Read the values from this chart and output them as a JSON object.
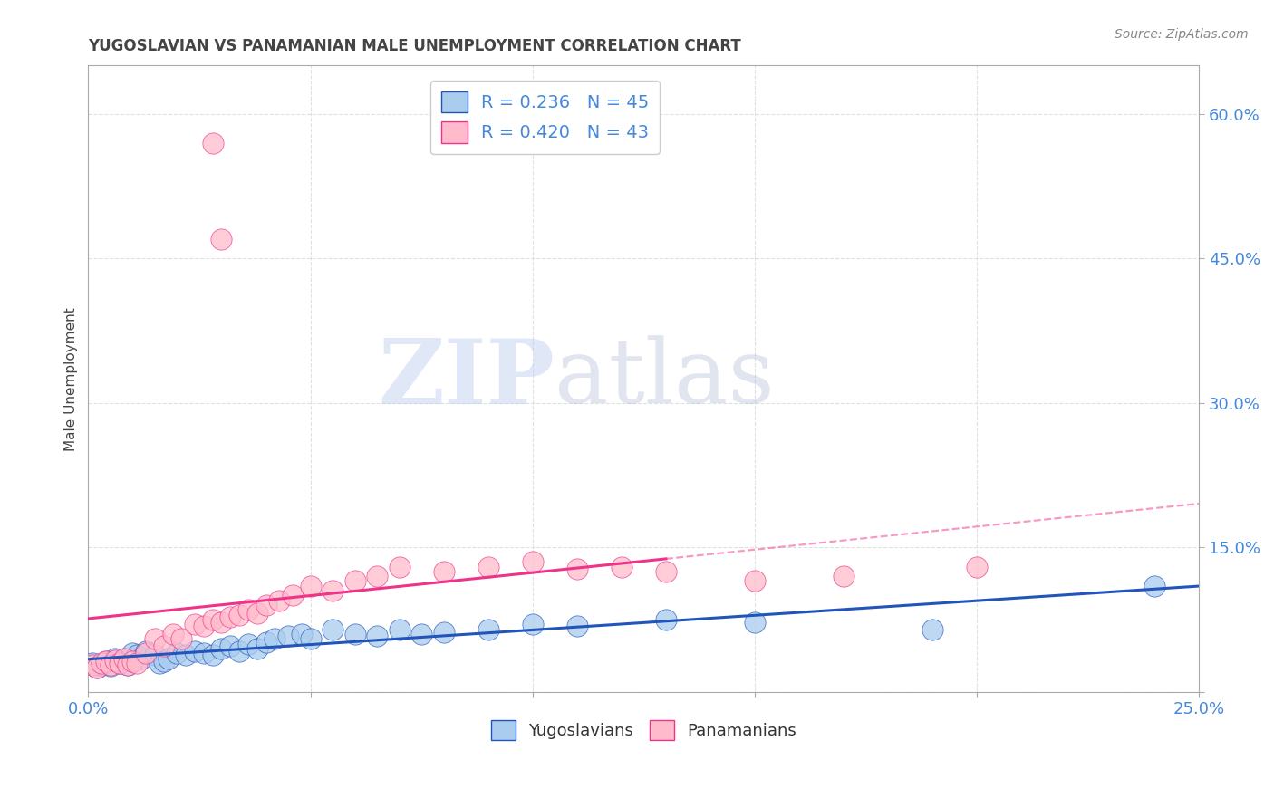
{
  "title": "YUGOSLAVIAN VS PANAMANIAN MALE UNEMPLOYMENT CORRELATION CHART",
  "source": "Source: ZipAtlas.com",
  "ylabel": "Male Unemployment",
  "xlim": [
    0.0,
    0.25
  ],
  "ylim": [
    0.0,
    0.65
  ],
  "xticks": [
    0.0,
    0.05,
    0.1,
    0.15,
    0.2,
    0.25
  ],
  "xticklabels": [
    "0.0%",
    "",
    "",
    "",
    "",
    "25.0%"
  ],
  "yticks": [
    0.0,
    0.15,
    0.3,
    0.45,
    0.6
  ],
  "yticklabels": [
    "",
    "15.0%",
    "30.0%",
    "45.0%",
    "60.0%"
  ],
  "yugoslavian_color": "#aaccee",
  "panamanian_color": "#ffbbcc",
  "trend_yugoslavian_color": "#2255bb",
  "trend_panamanian_color": "#ee3388",
  "legend_R_yugoslavian": "R = 0.236",
  "legend_N_yugoslavian": "N = 45",
  "legend_R_panamanian": "R = 0.420",
  "legend_N_panamanian": "N = 43",
  "watermark_zip": "ZIP",
  "watermark_atlas": "atlas",
  "yugoslavian_x": [
    0.001,
    0.002,
    0.003,
    0.004,
    0.005,
    0.006,
    0.007,
    0.008,
    0.009,
    0.01,
    0.011,
    0.012,
    0.013,
    0.015,
    0.016,
    0.017,
    0.018,
    0.02,
    0.022,
    0.024,
    0.026,
    0.028,
    0.03,
    0.032,
    0.034,
    0.036,
    0.038,
    0.04,
    0.042,
    0.045,
    0.048,
    0.05,
    0.055,
    0.06,
    0.065,
    0.07,
    0.075,
    0.08,
    0.09,
    0.1,
    0.11,
    0.13,
    0.15,
    0.19,
    0.24
  ],
  "yugoslavian_y": [
    0.03,
    0.025,
    0.028,
    0.032,
    0.027,
    0.035,
    0.03,
    0.033,
    0.028,
    0.04,
    0.038,
    0.035,
    0.042,
    0.038,
    0.03,
    0.032,
    0.035,
    0.04,
    0.038,
    0.042,
    0.04,
    0.038,
    0.045,
    0.048,
    0.042,
    0.05,
    0.045,
    0.052,
    0.055,
    0.058,
    0.06,
    0.055,
    0.065,
    0.06,
    0.058,
    0.065,
    0.06,
    0.062,
    0.065,
    0.07,
    0.068,
    0.075,
    0.072,
    0.065,
    0.11
  ],
  "panamanian_x": [
    0.001,
    0.002,
    0.003,
    0.004,
    0.005,
    0.006,
    0.007,
    0.008,
    0.009,
    0.01,
    0.011,
    0.013,
    0.015,
    0.017,
    0.019,
    0.021,
    0.024,
    0.026,
    0.028,
    0.03,
    0.032,
    0.034,
    0.036,
    0.038,
    0.04,
    0.043,
    0.046,
    0.05,
    0.055,
    0.06,
    0.065,
    0.07,
    0.08,
    0.09,
    0.1,
    0.11,
    0.12,
    0.13,
    0.15,
    0.17,
    0.2,
    0.028,
    0.03
  ],
  "panamanian_y": [
    0.028,
    0.025,
    0.03,
    0.032,
    0.028,
    0.033,
    0.03,
    0.035,
    0.028,
    0.032,
    0.03,
    0.04,
    0.055,
    0.048,
    0.06,
    0.055,
    0.07,
    0.068,
    0.075,
    0.072,
    0.078,
    0.08,
    0.085,
    0.082,
    0.09,
    0.095,
    0.1,
    0.11,
    0.105,
    0.115,
    0.12,
    0.13,
    0.125,
    0.13,
    0.135,
    0.128,
    0.13,
    0.125,
    0.115,
    0.12,
    0.13,
    0.57,
    0.47
  ],
  "background_color": "#ffffff",
  "grid_color": "#dddddd",
  "title_color": "#444444",
  "axis_color": "#aaaaaa",
  "tick_color": "#4488dd",
  "source_color": "#888888"
}
